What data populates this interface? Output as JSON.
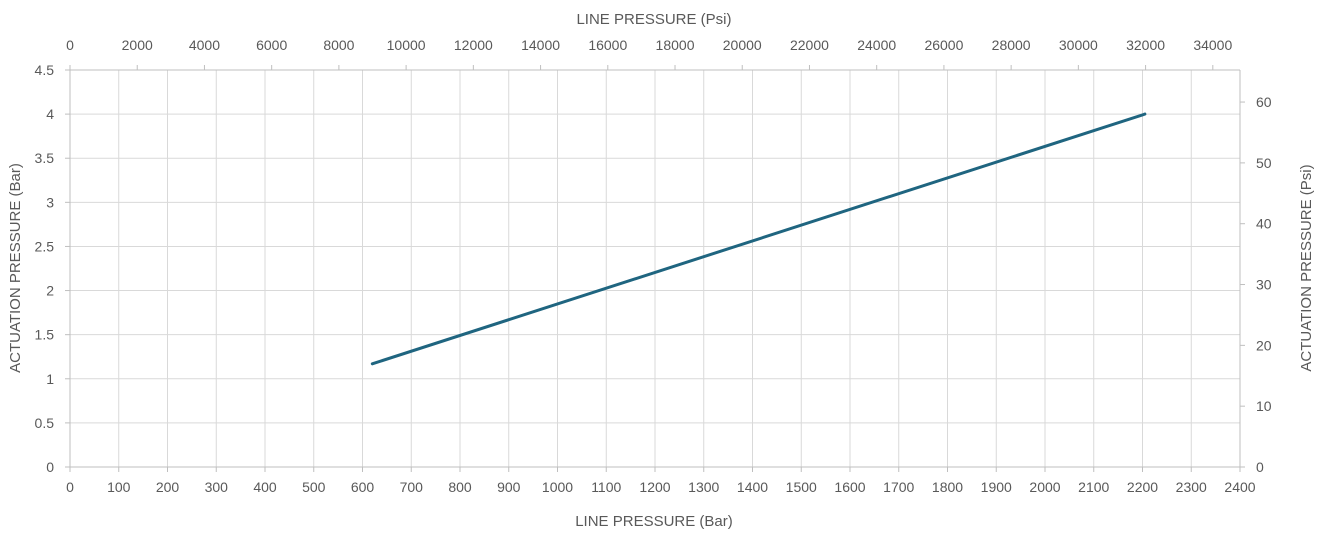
{
  "chart_data": {
    "type": "line",
    "x_axis_bottom": {
      "label": "LINE PRESSURE (Bar)",
      "range": [
        0,
        2400
      ],
      "ticks": [
        "0",
        "100",
        "200",
        "300",
        "400",
        "500",
        "600",
        "700",
        "800",
        "900",
        "1000",
        "1100",
        "1200",
        "1300",
        "1400",
        "1500",
        "1600",
        "1700",
        "1800",
        "1900",
        "2000",
        "2100",
        "2200",
        "2300",
        "2400"
      ]
    },
    "x_axis_top": {
      "label": "LINE PRESSURE (Psi)",
      "range": [
        0,
        34809
      ],
      "ticks": [
        "0",
        "2000",
        "4000",
        "6000",
        "8000",
        "10000",
        "12000",
        "14000",
        "16000",
        "18000",
        "20000",
        "22000",
        "24000",
        "26000",
        "28000",
        "30000",
        "32000",
        "34000"
      ]
    },
    "y_axis_left": {
      "label": "ACTUATION PRESSURE (Bar)",
      "range": [
        0,
        4.5
      ],
      "ticks": [
        "0",
        "0.5",
        "1",
        "1.5",
        "2",
        "2.5",
        "3",
        "3.5",
        "4",
        "4.5"
      ]
    },
    "y_axis_right": {
      "label": "ACTUATION PRESSURE (Psi)",
      "range": [
        0,
        65.27
      ],
      "ticks": [
        "0",
        "10",
        "20",
        "30",
        "40",
        "50",
        "60"
      ]
    },
    "grid": true,
    "series": [
      {
        "color": "#1f6580",
        "x": [
          620,
          2205
        ],
        "y": [
          1.17,
          4.0
        ]
      }
    ]
  }
}
